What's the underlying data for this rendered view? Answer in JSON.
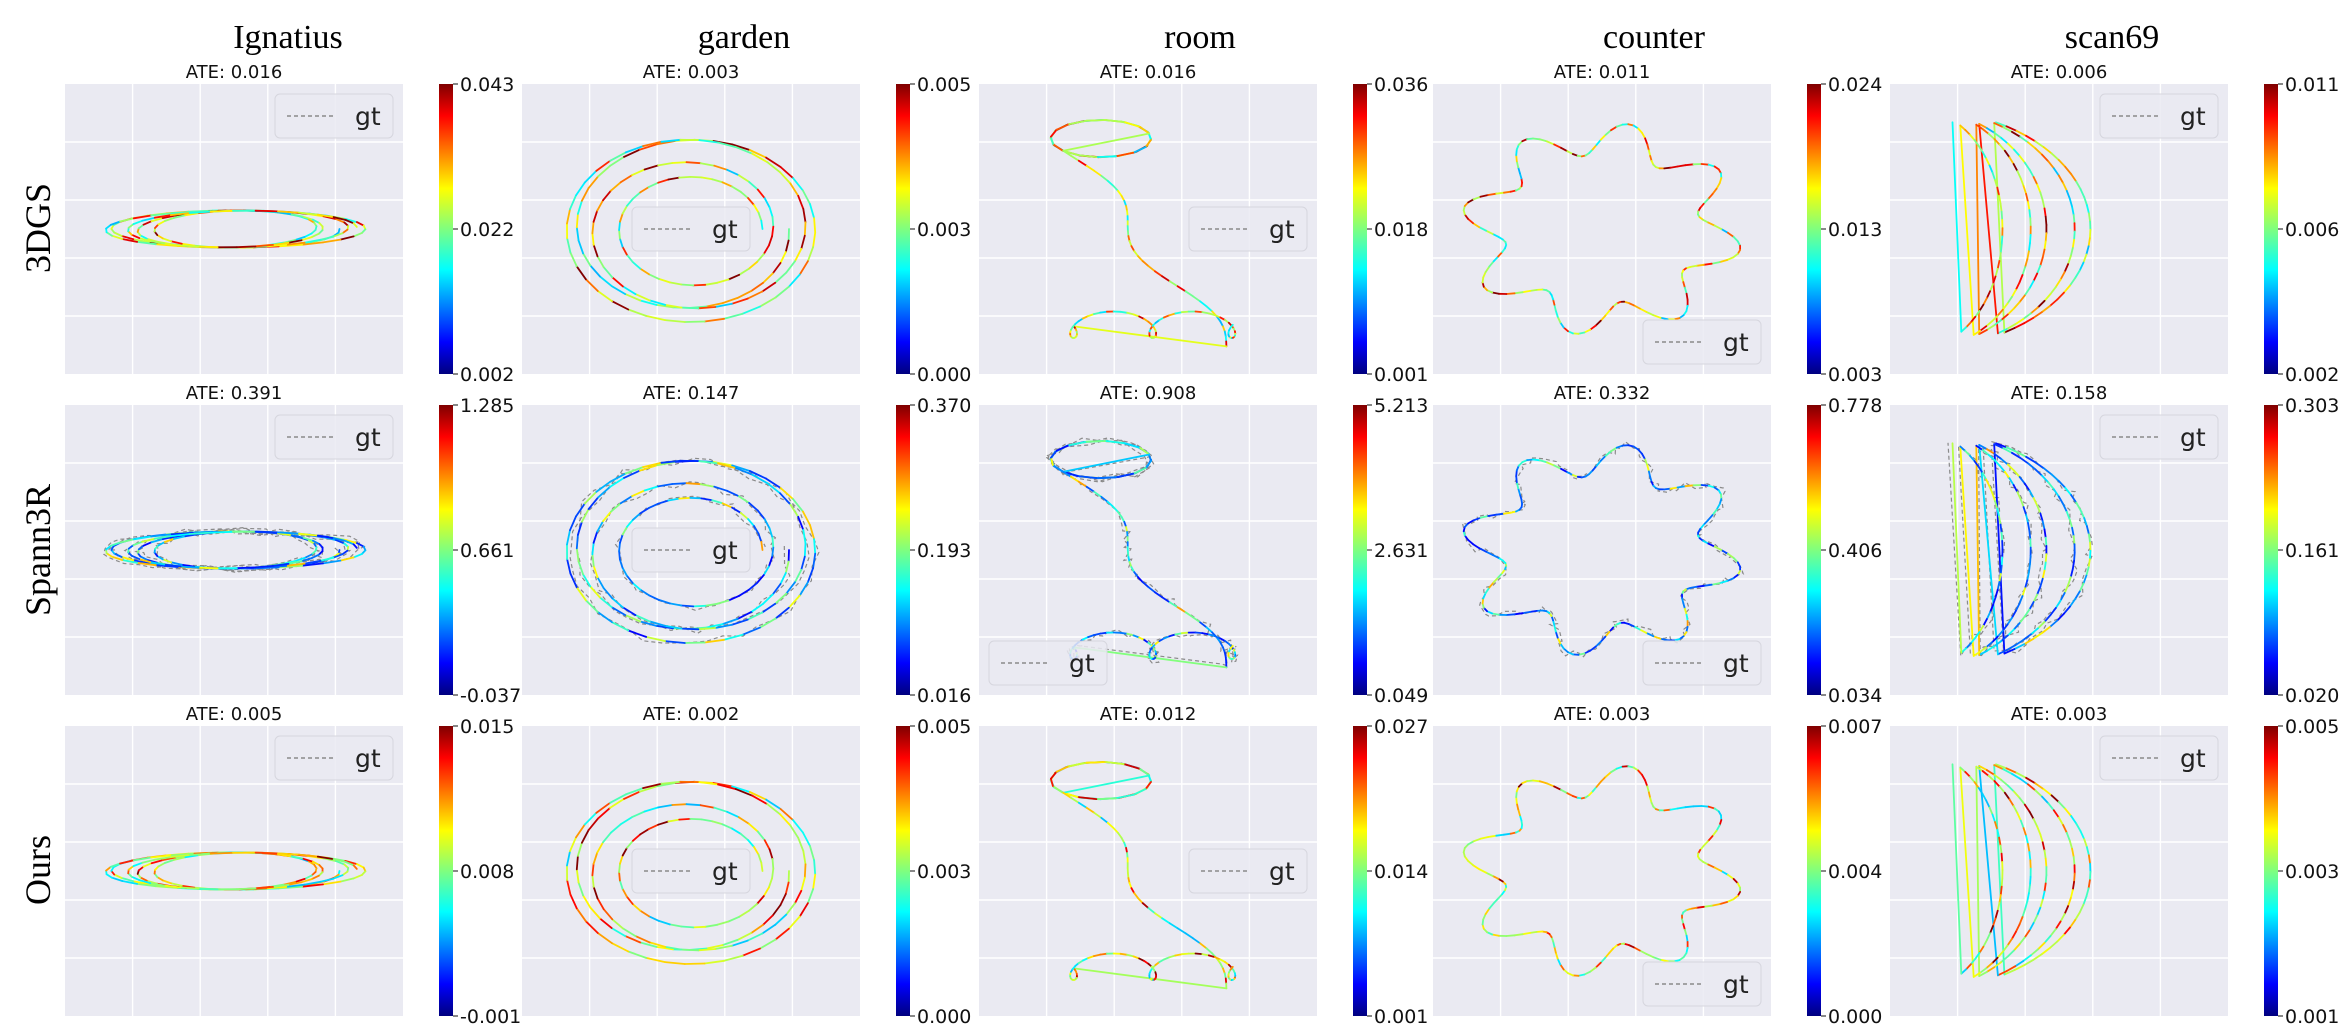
{
  "columns": [
    "Ignatius",
    "garden",
    "room",
    "counter",
    "scan69"
  ],
  "rows": [
    "3DGS",
    "Spann3R",
    "Ours"
  ],
  "legend_label": "gt",
  "colormap": "jet",
  "colors": {
    "panel_bg": "#eaeaf2",
    "gt_line": "#8a8a8a",
    "legend_bg": "#eaeaf2"
  },
  "chart_data": [
    {
      "type": "line",
      "row": "3DGS",
      "column": "Ignatius",
      "title": "ATE: 0.016",
      "colorbar": {
        "min": "0.002",
        "mid": "0.022",
        "max": "0.043"
      },
      "legend_placement": "top-right",
      "show_gt": false
    },
    {
      "type": "line",
      "row": "3DGS",
      "column": "garden",
      "title": "ATE: 0.003",
      "colorbar": {
        "min": "0.000",
        "mid": "0.003",
        "max": "0.005"
      },
      "legend_placement": "center",
      "show_gt": false
    },
    {
      "type": "line",
      "row": "3DGS",
      "column": "room",
      "title": "ATE: 0.016",
      "colorbar": {
        "min": "0.001",
        "mid": "0.018",
        "max": "0.036"
      },
      "legend_placement": "center-right",
      "show_gt": false
    },
    {
      "type": "line",
      "row": "3DGS",
      "column": "counter",
      "title": "ATE: 0.011",
      "colorbar": {
        "min": "0.003",
        "mid": "0.013",
        "max": "0.024"
      },
      "legend_placement": "bottom-right",
      "show_gt": false
    },
    {
      "type": "line",
      "row": "3DGS",
      "column": "scan69",
      "title": "ATE: 0.006",
      "colorbar": {
        "min": "0.002",
        "mid": "0.006",
        "max": "0.011"
      },
      "legend_placement": "top-right",
      "show_gt": false
    },
    {
      "type": "line",
      "row": "Spann3R",
      "column": "Ignatius",
      "title": "ATE: 0.391",
      "colorbar": {
        "min": "-0.037",
        "mid": "0.661",
        "max": "1.285"
      },
      "legend_placement": "top-right",
      "show_gt": true
    },
    {
      "type": "line",
      "row": "Spann3R",
      "column": "garden",
      "title": "ATE: 0.147",
      "colorbar": {
        "min": "0.016",
        "mid": "0.193",
        "max": "0.370"
      },
      "legend_placement": "center",
      "show_gt": true
    },
    {
      "type": "line",
      "row": "Spann3R",
      "column": "room",
      "title": "ATE: 0.908",
      "colorbar": {
        "min": "0.049",
        "mid": "2.631",
        "max": "5.213"
      },
      "legend_placement": "bottom-left",
      "show_gt": true
    },
    {
      "type": "line",
      "row": "Spann3R",
      "column": "counter",
      "title": "ATE: 0.332",
      "colorbar": {
        "min": "0.034",
        "mid": "0.406",
        "max": "0.778"
      },
      "legend_placement": "bottom-right",
      "show_gt": true
    },
    {
      "type": "line",
      "row": "Spann3R",
      "column": "scan69",
      "title": "ATE: 0.158",
      "colorbar": {
        "min": "0.020",
        "mid": "0.161",
        "max": "0.303"
      },
      "legend_placement": "top-right",
      "show_gt": true
    },
    {
      "type": "line",
      "row": "Ours",
      "column": "Ignatius",
      "title": "ATE: 0.005",
      "colorbar": {
        "min": "-0.001",
        "mid": "0.008",
        "max": "0.015"
      },
      "legend_placement": "top-right",
      "show_gt": false
    },
    {
      "type": "line",
      "row": "Ours",
      "column": "garden",
      "title": "ATE: 0.002",
      "colorbar": {
        "min": "0.000",
        "mid": "0.003",
        "max": "0.005"
      },
      "legend_placement": "center",
      "show_gt": false
    },
    {
      "type": "line",
      "row": "Ours",
      "column": "room",
      "title": "ATE: 0.012",
      "colorbar": {
        "min": "0.001",
        "mid": "0.014",
        "max": "0.027"
      },
      "legend_placement": "center-right",
      "show_gt": false
    },
    {
      "type": "line",
      "row": "Ours",
      "column": "counter",
      "title": "ATE: 0.003",
      "colorbar": {
        "min": "0.000",
        "mid": "0.004",
        "max": "0.007"
      },
      "legend_placement": "bottom-right",
      "show_gt": false
    },
    {
      "type": "line",
      "row": "Ours",
      "column": "scan69",
      "title": "ATE: 0.003",
      "colorbar": {
        "min": "0.001",
        "mid": "0.003",
        "max": "0.005"
      },
      "legend_placement": "top-right",
      "show_gt": false
    }
  ]
}
